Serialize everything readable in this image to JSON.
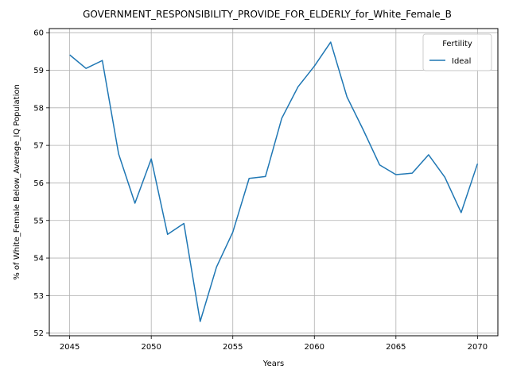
{
  "chart_data": {
    "type": "line",
    "title": "GOVERNMENT_RESPONSIBILITY_PROVIDE_FOR_ELDERLY_for_White_Female_B",
    "xlabel": "Years",
    "ylabel": "% of White_Female Below_Average_IQ Population",
    "xlim": [
      2043.75,
      2071.25
    ],
    "ylim": [
      51.93,
      60.11
    ],
    "xticks": [
      2045,
      2050,
      2055,
      2060,
      2065,
      2070
    ],
    "yticks": [
      52,
      53,
      54,
      55,
      56,
      57,
      58,
      59,
      60
    ],
    "grid": true,
    "legend": {
      "title": "Fertility",
      "position": "upper right"
    },
    "x": [
      2045,
      2046,
      2047,
      2048,
      2049,
      2050,
      2051,
      2052,
      2053,
      2054,
      2055,
      2056,
      2057,
      2058,
      2059,
      2060,
      2061,
      2062,
      2063,
      2064,
      2065,
      2066,
      2067,
      2068,
      2069,
      2070
    ],
    "series": [
      {
        "name": "Ideal",
        "color": "#1f77b4",
        "values": [
          59.41,
          59.05,
          59.26,
          56.77,
          55.46,
          56.64,
          54.63,
          54.92,
          52.31,
          53.76,
          54.69,
          56.12,
          56.17,
          57.72,
          58.56,
          59.11,
          59.75,
          58.29,
          57.41,
          56.48,
          56.22,
          56.26,
          56.75,
          56.15,
          55.21,
          56.51
        ]
      }
    ]
  }
}
